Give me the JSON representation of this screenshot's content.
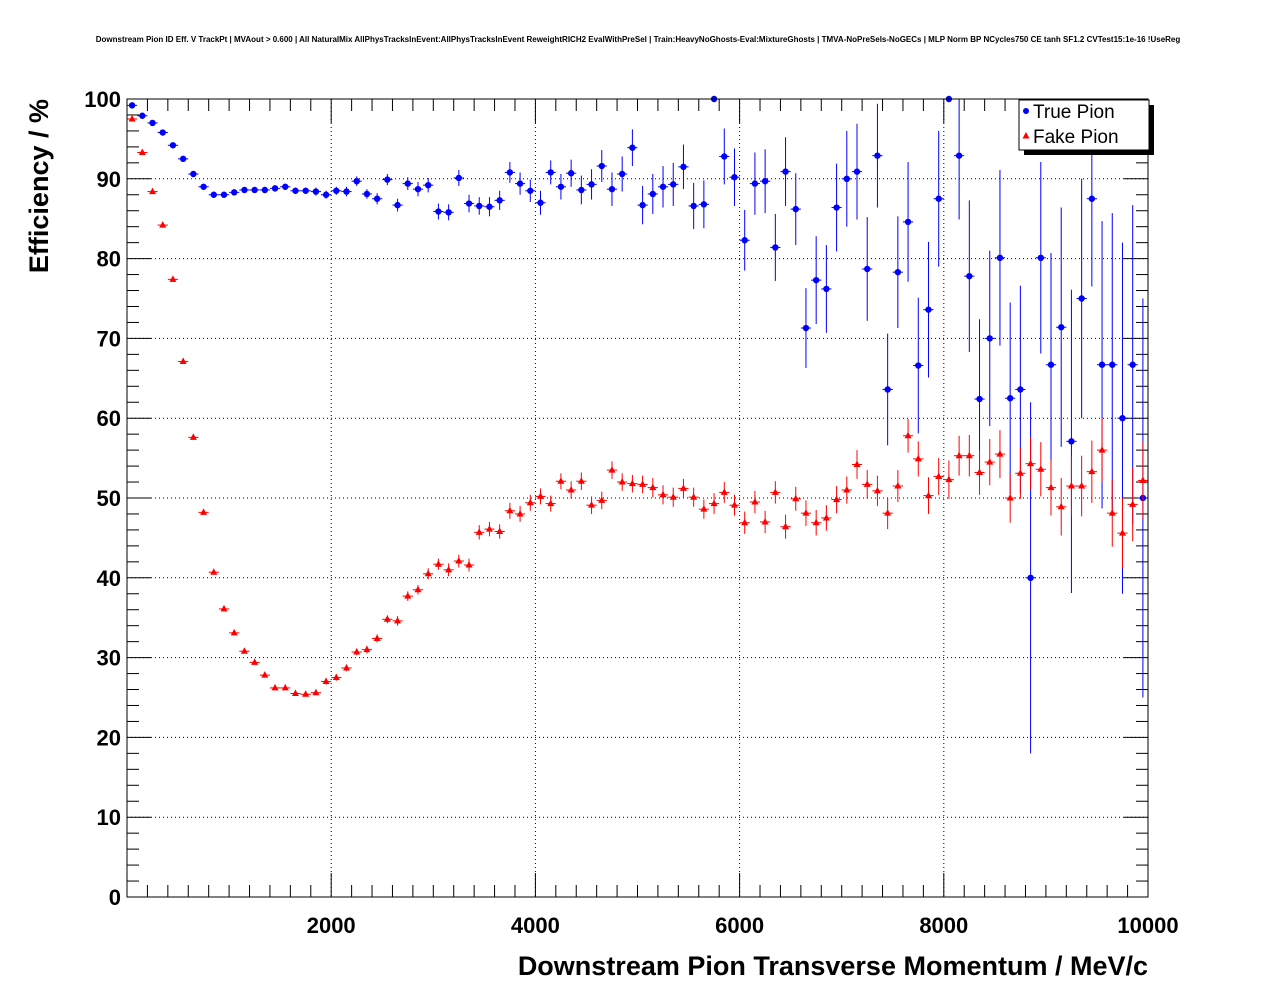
{
  "chart_data": {
    "type": "scatter",
    "title": "Downstream Pion ID Eff. V TrackPt | MVAout > 0.600 | All NaturalMix AllPhysTracksInEvent:AllPhysTracksInEvent ReweightRICH2 EvalWithPreSel | Train:HeavyNoGhosts-Eval:MixtureGhosts | TMVA-NoPreSels-NoGECs | MLP Norm BP NCycles750 CE tanh SF1.2 CVTest15:1e-16 !UseReg",
    "xlabel": "Downstream Pion Transverse Momentum / MeV/c",
    "ylabel": "Efficiency / %",
    "xlim": [
      0,
      10000
    ],
    "ylim": [
      0,
      100
    ],
    "x_ticks": [
      "2000",
      "4000",
      "6000",
      "8000",
      "10000"
    ],
    "y_ticks": [
      "0",
      "10",
      "20",
      "30",
      "40",
      "50",
      "60",
      "70",
      "80",
      "90",
      "100"
    ],
    "grid": true,
    "legend_position": "top-right",
    "colors": {
      "true_pion": "#0000ff",
      "fake_pion": "#ff0000"
    },
    "series": [
      {
        "name": "True Pion",
        "marker": "circle",
        "color": "#0000ff",
        "points": [
          [
            50,
            99.2,
            0.2
          ],
          [
            150,
            97.9,
            0.2
          ],
          [
            250,
            97.0,
            0.2
          ],
          [
            350,
            95.8,
            0.2
          ],
          [
            450,
            94.2,
            0.3
          ],
          [
            550,
            92.5,
            0.3
          ],
          [
            650,
            90.6,
            0.3
          ],
          [
            750,
            89.0,
            0.3
          ],
          [
            850,
            88.0,
            0.3
          ],
          [
            950,
            88.0,
            0.3
          ],
          [
            1050,
            88.3,
            0.3
          ],
          [
            1150,
            88.6,
            0.3
          ],
          [
            1250,
            88.6,
            0.3
          ],
          [
            1350,
            88.6,
            0.4
          ],
          [
            1450,
            88.8,
            0.4
          ],
          [
            1550,
            89.0,
            0.4
          ],
          [
            1650,
            88.5,
            0.4
          ],
          [
            1750,
            88.5,
            0.4
          ],
          [
            1850,
            88.4,
            0.5
          ],
          [
            1950,
            88.0,
            0.5
          ],
          [
            2050,
            88.5,
            0.5
          ],
          [
            2150,
            88.4,
            0.6
          ],
          [
            2250,
            89.7,
            0.6
          ],
          [
            2350,
            88.1,
            0.6
          ],
          [
            2450,
            87.5,
            0.7
          ],
          [
            2550,
            89.9,
            0.7
          ],
          [
            2650,
            86.7,
            0.8
          ],
          [
            2750,
            89.4,
            0.8
          ],
          [
            2850,
            88.7,
            0.9
          ],
          [
            2950,
            89.2,
            0.9
          ],
          [
            3050,
            85.9,
            1.0
          ],
          [
            3150,
            85.8,
            1.0
          ],
          [
            3250,
            90.1,
            1.0
          ],
          [
            3350,
            86.9,
            1.1
          ],
          [
            3450,
            86.6,
            1.1
          ],
          [
            3550,
            86.5,
            1.2
          ],
          [
            3650,
            87.3,
            1.2
          ],
          [
            3750,
            90.8,
            1.3
          ],
          [
            3850,
            89.4,
            1.4
          ],
          [
            3950,
            88.5,
            1.4
          ],
          [
            4050,
            87.0,
            1.5
          ],
          [
            4150,
            90.8,
            1.5
          ],
          [
            4250,
            89.0,
            1.6
          ],
          [
            4350,
            90.7,
            1.7
          ],
          [
            4450,
            88.6,
            1.8
          ],
          [
            4550,
            89.3,
            1.9
          ],
          [
            4650,
            91.6,
            2.0
          ],
          [
            4750,
            88.7,
            2.1
          ],
          [
            4850,
            90.6,
            2.2
          ],
          [
            4950,
            93.9,
            2.3
          ],
          [
            5050,
            86.7,
            2.4
          ],
          [
            5150,
            88.1,
            2.5
          ],
          [
            5250,
            89.0,
            2.6
          ],
          [
            5350,
            89.3,
            2.7
          ],
          [
            5450,
            91.5,
            2.8
          ],
          [
            5550,
            86.6,
            2.9
          ],
          [
            5650,
            86.8,
            3.0
          ],
          [
            5750,
            100.0,
            0.0
          ],
          [
            5850,
            92.8,
            3.5
          ],
          [
            5950,
            90.2,
            3.6
          ],
          [
            6050,
            82.3,
            3.8
          ],
          [
            6150,
            89.4,
            3.9
          ],
          [
            6250,
            89.7,
            4.0
          ],
          [
            6350,
            81.4,
            4.2
          ],
          [
            6450,
            90.9,
            4.3
          ],
          [
            6550,
            86.2,
            4.5
          ],
          [
            6650,
            71.3,
            5.0
          ],
          [
            6750,
            77.3,
            5.5
          ],
          [
            6850,
            76.2,
            5.5
          ],
          [
            6950,
            86.4,
            5.5
          ],
          [
            7050,
            90.0,
            6.0
          ],
          [
            7150,
            90.9,
            6.0
          ],
          [
            7250,
            78.7,
            6.5
          ],
          [
            7350,
            92.9,
            6.5
          ],
          [
            7450,
            63.6,
            7.0
          ],
          [
            7550,
            78.3,
            7.0
          ],
          [
            7650,
            84.6,
            7.5
          ],
          [
            7750,
            66.6,
            8.5
          ],
          [
            7850,
            73.6,
            8.5
          ],
          [
            7950,
            87.5,
            8.5
          ],
          [
            8050,
            100.0,
            0.0
          ],
          [
            8150,
            92.9,
            8.0
          ],
          [
            8250,
            77.8,
            9.5
          ],
          [
            8350,
            62.4,
            10.0
          ],
          [
            8450,
            70.0,
            11.0
          ],
          [
            8550,
            80.1,
            11.0
          ],
          [
            8650,
            62.5,
            12.0
          ],
          [
            8750,
            63.6,
            13.0
          ],
          [
            8850,
            40.0,
            22.0
          ],
          [
            8950,
            80.1,
            12.0
          ],
          [
            9050,
            66.7,
            14.0
          ],
          [
            9150,
            71.4,
            15.0
          ],
          [
            9250,
            57.1,
            19.0
          ],
          [
            9350,
            75.0,
            15.0
          ],
          [
            9450,
            87.5,
            11.0
          ],
          [
            9550,
            66.7,
            18.0
          ],
          [
            9650,
            66.7,
            19.0
          ],
          [
            9750,
            60.0,
            22.0
          ],
          [
            9850,
            66.7,
            20.0
          ],
          [
            9950,
            50.0,
            25.0
          ]
        ]
      },
      {
        "name": "Fake Pion",
        "marker": "triangle",
        "color": "#ff0000",
        "points": [
          [
            50,
            97.5,
            0.2
          ],
          [
            150,
            93.3,
            0.3
          ],
          [
            250,
            88.4,
            0.3
          ],
          [
            350,
            84.2,
            0.3
          ],
          [
            450,
            77.4,
            0.3
          ],
          [
            550,
            67.1,
            0.3
          ],
          [
            650,
            57.6,
            0.3
          ],
          [
            750,
            48.2,
            0.3
          ],
          [
            850,
            40.7,
            0.3
          ],
          [
            950,
            36.1,
            0.3
          ],
          [
            1050,
            33.1,
            0.3
          ],
          [
            1150,
            30.8,
            0.3
          ],
          [
            1250,
            29.4,
            0.3
          ],
          [
            1350,
            27.8,
            0.3
          ],
          [
            1450,
            26.2,
            0.3
          ],
          [
            1550,
            26.2,
            0.3
          ],
          [
            1650,
            25.5,
            0.3
          ],
          [
            1750,
            25.4,
            0.3
          ],
          [
            1850,
            25.6,
            0.3
          ],
          [
            1950,
            27.0,
            0.4
          ],
          [
            2050,
            27.5,
            0.4
          ],
          [
            2150,
            28.7,
            0.4
          ],
          [
            2250,
            30.7,
            0.4
          ],
          [
            2350,
            31.0,
            0.5
          ],
          [
            2450,
            32.4,
            0.5
          ],
          [
            2550,
            34.8,
            0.5
          ],
          [
            2650,
            34.6,
            0.6
          ],
          [
            2750,
            37.7,
            0.6
          ],
          [
            2850,
            38.5,
            0.6
          ],
          [
            2950,
            40.5,
            0.7
          ],
          [
            3050,
            41.7,
            0.7
          ],
          [
            3150,
            41.0,
            0.8
          ],
          [
            3250,
            42.1,
            0.8
          ],
          [
            3350,
            41.6,
            0.8
          ],
          [
            3450,
            45.7,
            0.9
          ],
          [
            3550,
            46.1,
            0.9
          ],
          [
            3650,
            45.8,
            0.9
          ],
          [
            3750,
            48.4,
            1.0
          ],
          [
            3850,
            48.0,
            1.0
          ],
          [
            3950,
            49.4,
            1.0
          ],
          [
            4050,
            50.2,
            1.0
          ],
          [
            4150,
            49.3,
            1.0
          ],
          [
            4250,
            52.1,
            1.0
          ],
          [
            4350,
            51.0,
            1.1
          ],
          [
            4450,
            52.1,
            1.1
          ],
          [
            4550,
            49.1,
            1.1
          ],
          [
            4650,
            49.7,
            1.1
          ],
          [
            4750,
            53.5,
            1.1
          ],
          [
            4850,
            52.0,
            1.1
          ],
          [
            4950,
            51.8,
            1.1
          ],
          [
            5050,
            51.7,
            1.1
          ],
          [
            5150,
            51.3,
            1.2
          ],
          [
            5250,
            50.4,
            1.2
          ],
          [
            5350,
            50.1,
            1.2
          ],
          [
            5450,
            51.2,
            1.2
          ],
          [
            5550,
            50.1,
            1.2
          ],
          [
            5650,
            48.6,
            1.2
          ],
          [
            5750,
            49.3,
            1.3
          ],
          [
            5850,
            50.7,
            1.3
          ],
          [
            5950,
            49.1,
            1.3
          ],
          [
            6050,
            46.9,
            1.4
          ],
          [
            6150,
            49.5,
            1.4
          ],
          [
            6250,
            47.0,
            1.4
          ],
          [
            6350,
            50.7,
            1.4
          ],
          [
            6450,
            46.4,
            1.5
          ],
          [
            6550,
            49.9,
            1.5
          ],
          [
            6650,
            48.1,
            1.6
          ],
          [
            6750,
            46.9,
            1.6
          ],
          [
            6850,
            47.5,
            1.6
          ],
          [
            6950,
            49.8,
            1.7
          ],
          [
            7050,
            51.0,
            1.7
          ],
          [
            7150,
            54.2,
            1.8
          ],
          [
            7250,
            51.7,
            1.8
          ],
          [
            7350,
            50.9,
            1.9
          ],
          [
            7450,
            48.1,
            2.0
          ],
          [
            7550,
            51.5,
            2.0
          ],
          [
            7650,
            57.8,
            2.1
          ],
          [
            7750,
            54.9,
            2.2
          ],
          [
            7850,
            50.3,
            2.3
          ],
          [
            7950,
            52.7,
            2.3
          ],
          [
            8050,
            52.3,
            2.4
          ],
          [
            8150,
            55.3,
            2.5
          ],
          [
            8250,
            55.3,
            2.6
          ],
          [
            8350,
            53.2,
            2.8
          ],
          [
            8450,
            54.5,
            2.9
          ],
          [
            8550,
            55.5,
            3.0
          ],
          [
            8650,
            50.0,
            3.1
          ],
          [
            8750,
            53.1,
            3.2
          ],
          [
            8850,
            54.3,
            3.3
          ],
          [
            8950,
            53.6,
            3.4
          ],
          [
            9050,
            51.3,
            3.5
          ],
          [
            9150,
            48.9,
            3.6
          ],
          [
            9250,
            51.5,
            3.7
          ],
          [
            9350,
            51.5,
            3.8
          ],
          [
            9450,
            53.3,
            3.9
          ],
          [
            9550,
            56.0,
            4.0
          ],
          [
            9650,
            48.1,
            4.2
          ],
          [
            9750,
            45.6,
            4.4
          ],
          [
            9850,
            49.2,
            4.6
          ],
          [
            9950,
            52.2,
            4.8
          ]
        ]
      }
    ]
  }
}
